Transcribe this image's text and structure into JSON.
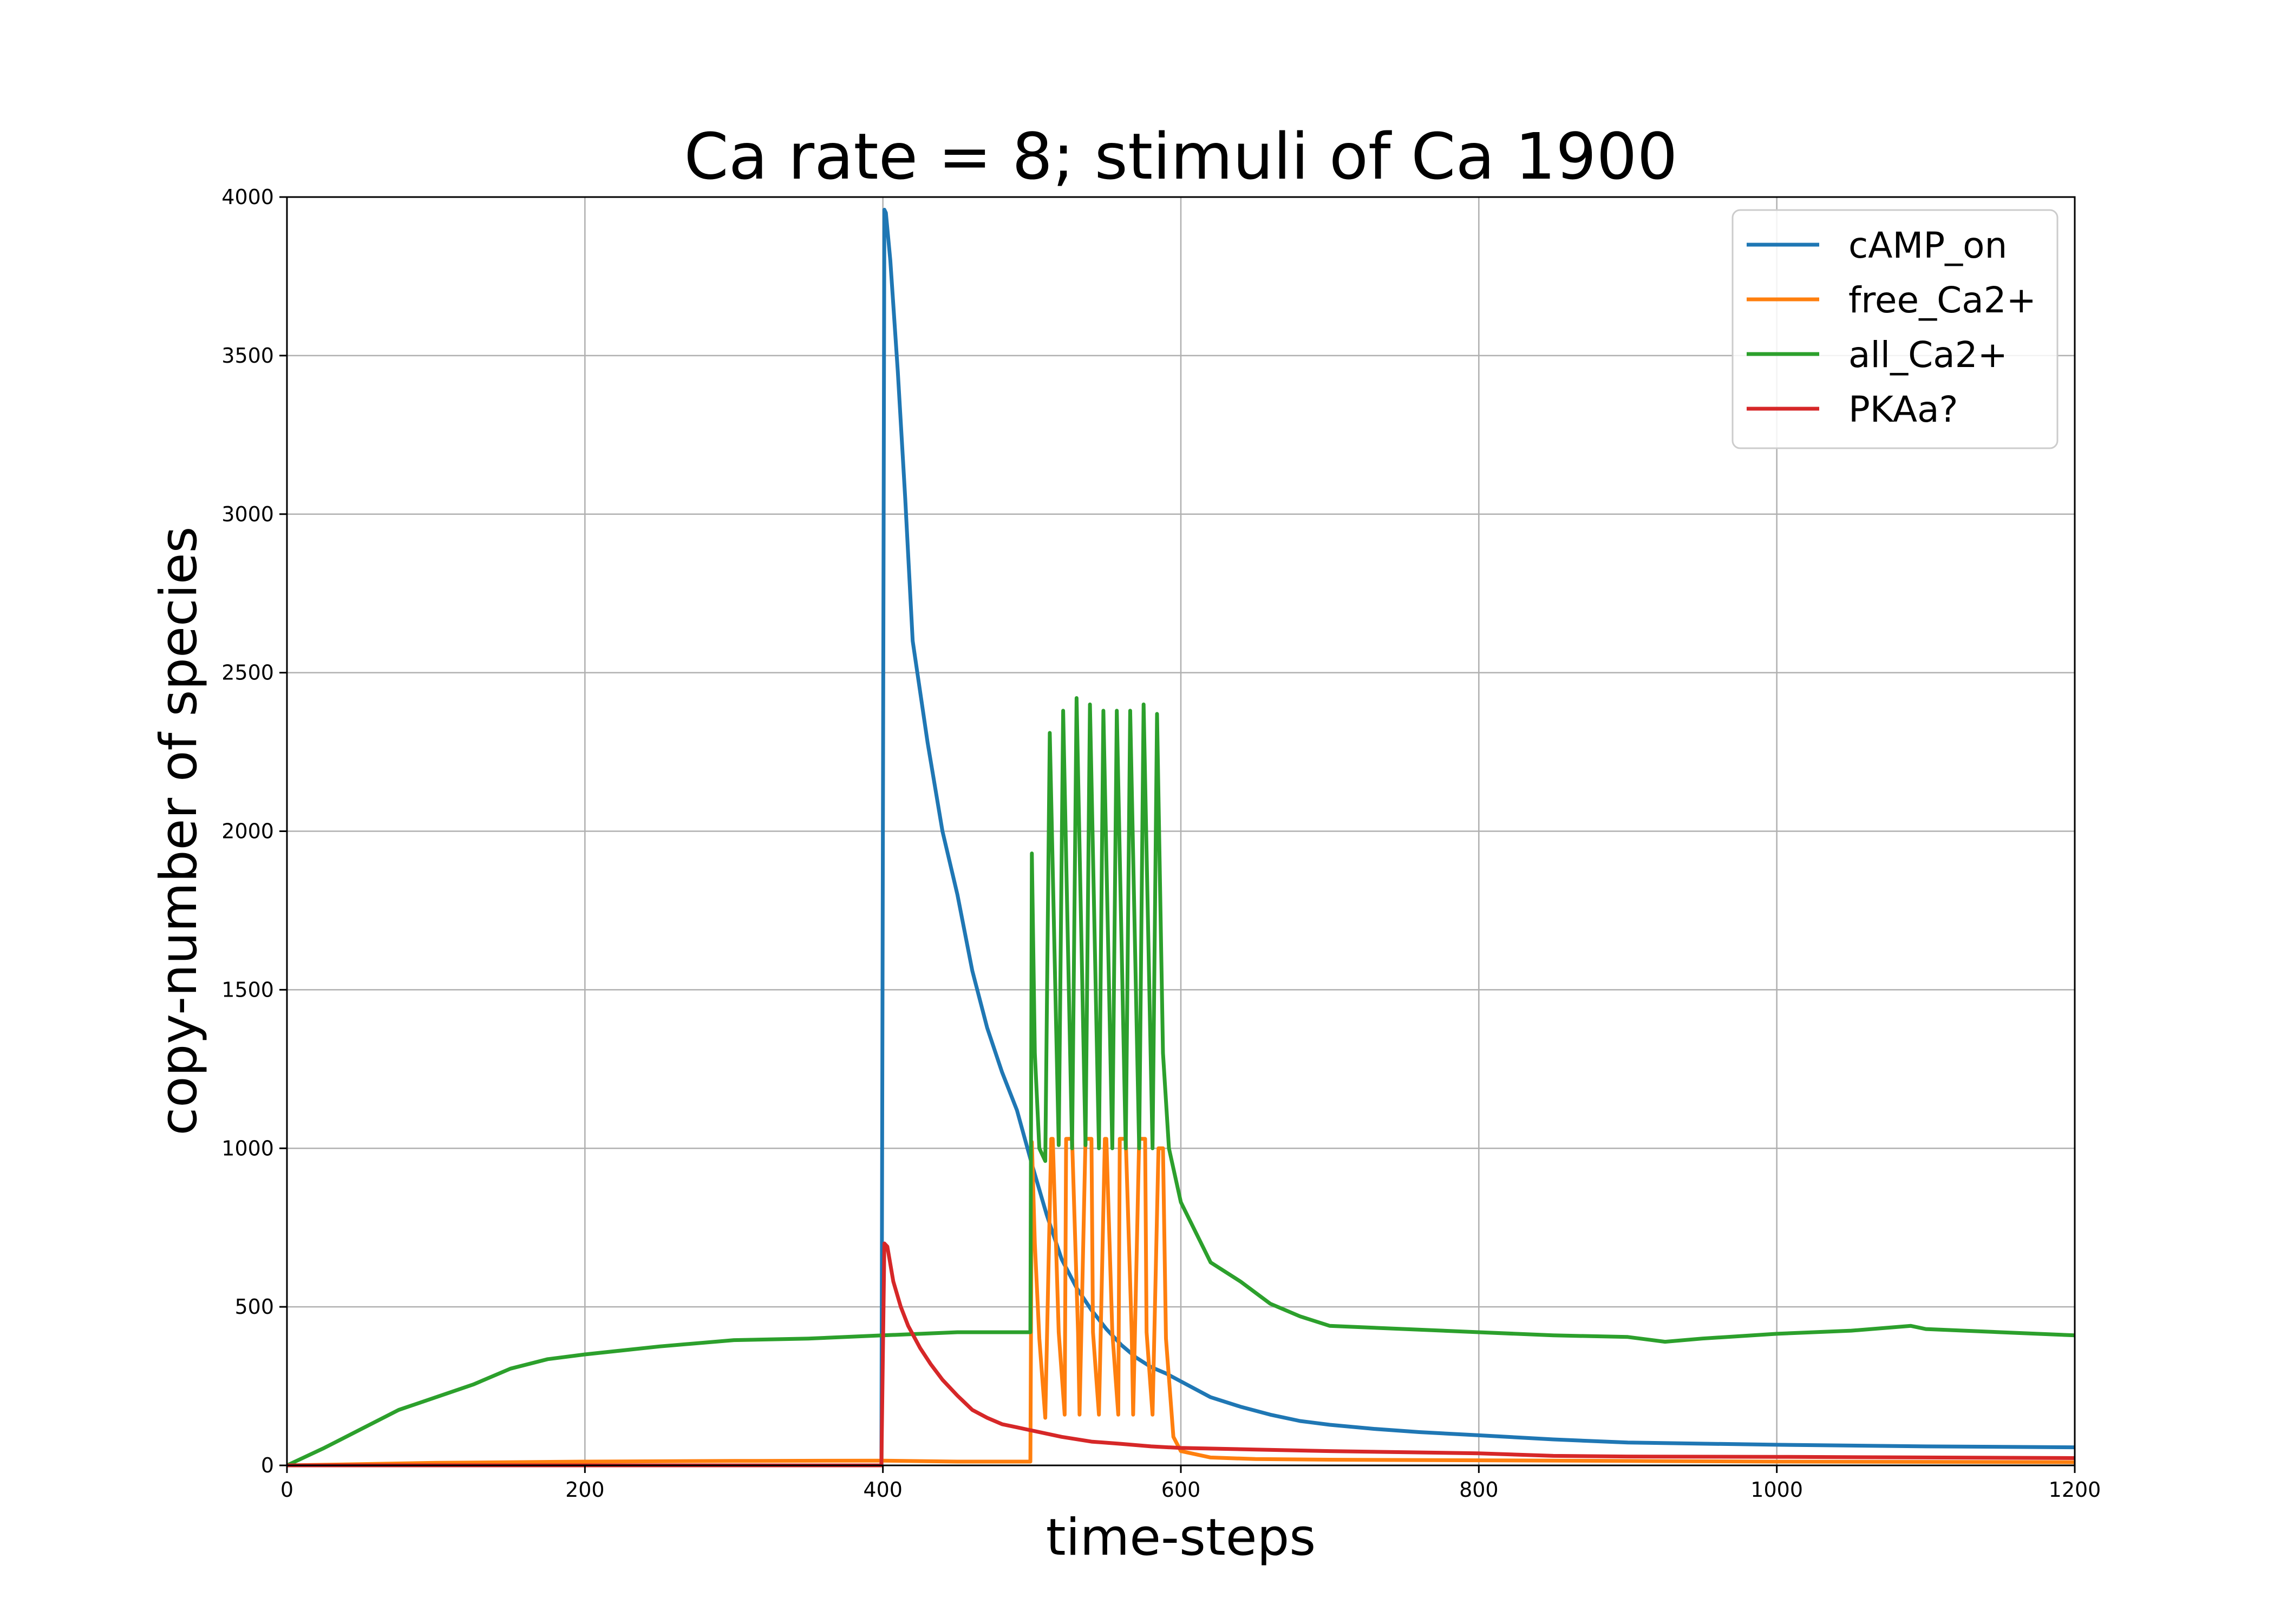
{
  "chart_data": {
    "type": "line",
    "title": "Ca rate = 8; stimuli of Ca 1900",
    "xlabel": "time-steps",
    "ylabel": "copy-number of species",
    "xlim": [
      0,
      1200
    ],
    "ylim": [
      0,
      4000
    ],
    "xticks": [
      0,
      200,
      400,
      600,
      800,
      1000,
      1200
    ],
    "yticks": [
      0,
      500,
      1000,
      1500,
      2000,
      2500,
      3000,
      3500,
      4000
    ],
    "xtick_labels": [
      "0",
      "200",
      "400",
      "600",
      "800",
      "1000",
      "1200"
    ],
    "ytick_labels": [
      "0",
      "500",
      "1000",
      "1500",
      "2000",
      "2500",
      "3000",
      "3500",
      "4000"
    ],
    "grid": true,
    "legend_position": "top-right",
    "series": [
      {
        "name": "cAMP_on",
        "color": "#1f77b4",
        "x": [
          0,
          399,
          401,
          402,
          405,
          410,
          415,
          420,
          430,
          440,
          450,
          460,
          470,
          480,
          490,
          500,
          510,
          520,
          530,
          540,
          550,
          560,
          570,
          580,
          590,
          600,
          620,
          640,
          660,
          680,
          700,
          730,
          760,
          800,
          850,
          900,
          1000,
          1100,
          1200
        ],
        "y": [
          0,
          0,
          3960,
          3950,
          3800,
          3450,
          3050,
          2600,
          2280,
          2000,
          1800,
          1560,
          1380,
          1240,
          1120,
          950,
          790,
          650,
          560,
          490,
          430,
          380,
          340,
          310,
          290,
          265,
          215,
          185,
          160,
          140,
          128,
          115,
          105,
          95,
          82,
          72,
          65,
          60,
          57
        ]
      },
      {
        "name": "free_Ca2+",
        "color": "#ff7f0e",
        "x": [
          0,
          100,
          200,
          300,
          400,
          450,
          499,
          500,
          502,
          505,
          509,
          513,
          514,
          518,
          522,
          523,
          527,
          531,
          532,
          536,
          540,
          541,
          545,
          549,
          550,
          554,
          558,
          559,
          563,
          567,
          568,
          572,
          576,
          577,
          581,
          585,
          588,
          590,
          595,
          600,
          620,
          650,
          700,
          800,
          900,
          1000,
          1200
        ],
        "y": [
          0,
          8,
          12,
          14,
          15,
          12,
          12,
          1020,
          700,
          400,
          150,
          1030,
          1030,
          420,
          160,
          1030,
          1030,
          420,
          160,
          1030,
          1030,
          420,
          160,
          1030,
          1030,
          420,
          160,
          1030,
          1030,
          420,
          160,
          1030,
          1030,
          420,
          160,
          1000,
          1000,
          400,
          90,
          45,
          25,
          20,
          18,
          16,
          14,
          12,
          10
        ]
      },
      {
        "name": "all_Ca2+",
        "color": "#2ca02c",
        "x": [
          0,
          25,
          50,
          75,
          100,
          125,
          150,
          175,
          200,
          250,
          300,
          350,
          400,
          450,
          499,
          500,
          502,
          505,
          509,
          512,
          518,
          521,
          527,
          530,
          536,
          539,
          545,
          548,
          554,
          557,
          563,
          566,
          572,
          575,
          581,
          584,
          588,
          592,
          600,
          620,
          640,
          660,
          680,
          700,
          750,
          800,
          850,
          900,
          925,
          950,
          1000,
          1050,
          1090,
          1100,
          1150,
          1200
        ],
        "y": [
          0,
          55,
          115,
          175,
          215,
          255,
          305,
          335,
          350,
          375,
          395,
          400,
          410,
          420,
          420,
          1930,
          1300,
          1000,
          960,
          2310,
          1010,
          2380,
          1000,
          2420,
          1010,
          2400,
          1000,
          2380,
          1000,
          2380,
          1000,
          2380,
          1000,
          2400,
          1000,
          2370,
          1300,
          1000,
          830,
          640,
          580,
          510,
          470,
          440,
          430,
          420,
          410,
          405,
          390,
          400,
          415,
          425,
          440,
          430,
          420,
          410
        ]
      },
      {
        "name": "PKAa?",
        "color": "#d62728",
        "x": [
          0,
          399,
          401,
          403,
          407,
          412,
          417,
          425,
          432,
          440,
          450,
          460,
          470,
          480,
          490,
          500,
          520,
          540,
          560,
          580,
          600,
          650,
          700,
          800,
          850,
          900,
          1000,
          1100,
          1200
        ],
        "y": [
          0,
          0,
          700,
          690,
          580,
          500,
          440,
          370,
          320,
          270,
          220,
          175,
          150,
          130,
          120,
          110,
          90,
          75,
          68,
          60,
          55,
          50,
          45,
          38,
          30,
          28,
          27,
          25,
          23
        ]
      }
    ]
  }
}
